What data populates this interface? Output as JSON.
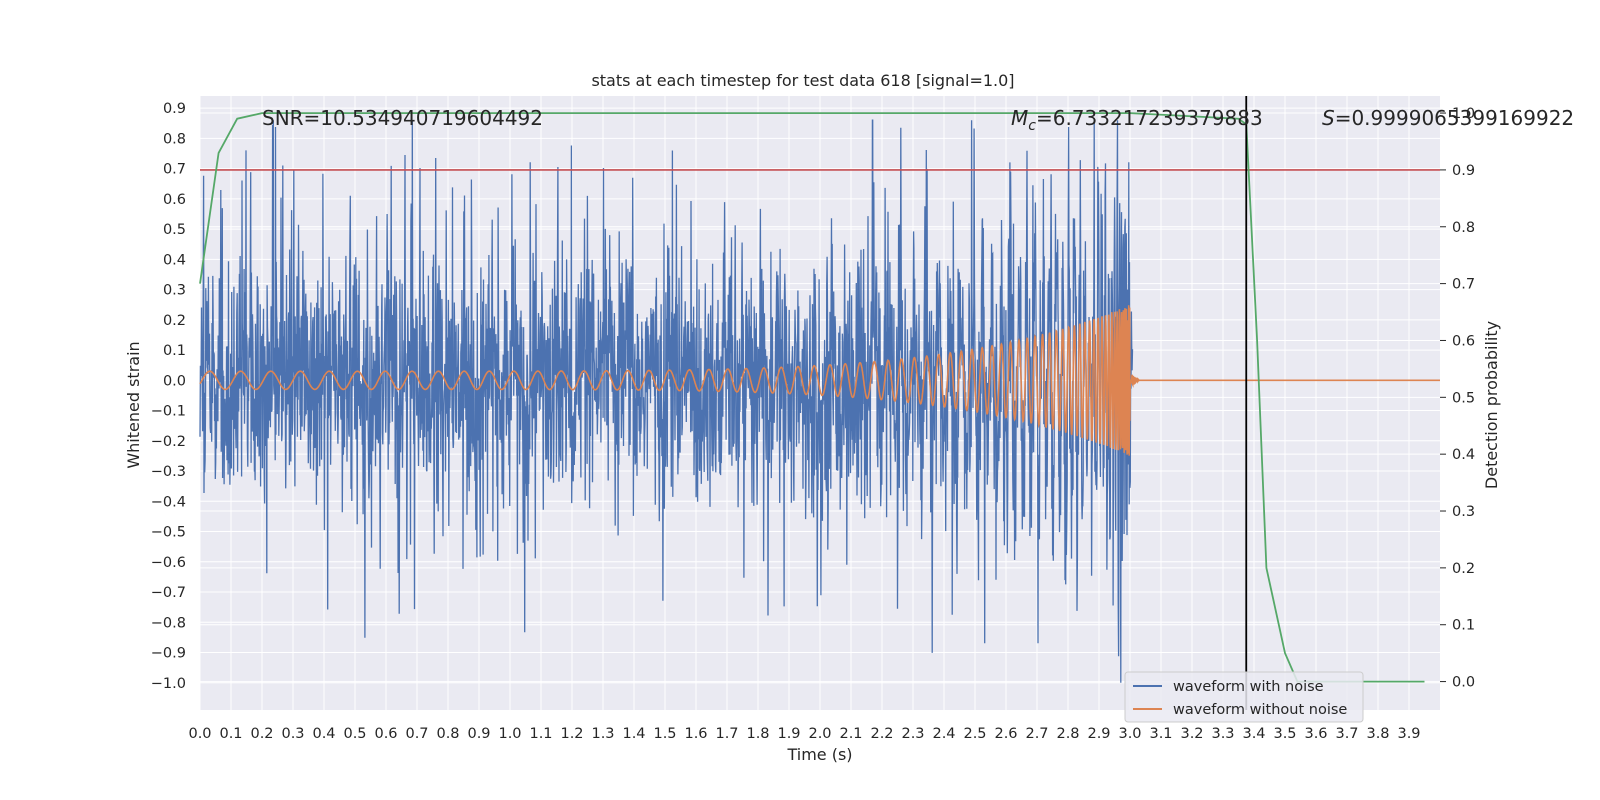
{
  "chart_data": {
    "type": "line",
    "title": "stats at each timestep for test data 618 [signal=1.0]",
    "xlabel": "Time (s)",
    "ylabel": "Whitened strain",
    "y2label": "Detection probability",
    "xlim": [
      0.0,
      4.0
    ],
    "ylim": [
      -1.09,
      0.94
    ],
    "y2lim": [
      -0.05,
      1.03
    ],
    "xticks": [
      "0.0",
      "0.1",
      "0.2",
      "0.3",
      "0.4",
      "0.5",
      "0.6",
      "0.7",
      "0.8",
      "0.9",
      "1.0",
      "1.1",
      "1.2",
      "1.3",
      "1.4",
      "1.5",
      "1.6",
      "1.7",
      "1.8",
      "1.9",
      "2.0",
      "2.1",
      "2.2",
      "2.3",
      "2.4",
      "2.5",
      "2.6",
      "2.7",
      "2.8",
      "2.9",
      "3.0",
      "3.1",
      "3.2",
      "3.3",
      "3.4",
      "3.5",
      "3.6",
      "3.7",
      "3.8",
      "3.9"
    ],
    "yticks": [
      "0.9",
      "0.8",
      "0.7",
      "0.6",
      "0.5",
      "0.4",
      "0.3",
      "0.2",
      "0.1",
      "0.0",
      "−0.1",
      "−0.2",
      "−0.3",
      "−0.4",
      "−0.5",
      "−0.6",
      "−0.7",
      "−0.8",
      "−0.9",
      "−1.0"
    ],
    "y2ticks": [
      "1.0",
      "0.9",
      "0.8",
      "0.7",
      "0.6",
      "0.5",
      "0.4",
      "0.3",
      "0.2",
      "0.1",
      "0.0"
    ],
    "annotations": {
      "snr": "SNR=10.534940719604492",
      "mc_symbol": "M",
      "mc_sub": "c",
      "mc_value": "=6.733217239379883",
      "s_symbol": "S",
      "s_value": "=0.9999065399169922"
    },
    "threshold_y2": 0.9,
    "marker_time": 3.375,
    "series": [
      {
        "name": "waveform with noise",
        "color": "#4c72b0",
        "style": "dense noise, roughly ±0.45 with spikes up to 0.85 / −1.0"
      },
      {
        "name": "waveform without noise",
        "color": "#dd8452",
        "style": "chirp: amplitude grows from 0.03 to 0.25, merger at t≈3.0 s, then ~0"
      },
      {
        "name": "detection probability",
        "color": "#55a868",
        "axis": "right",
        "x": [
          0.0,
          0.06,
          0.12,
          0.2,
          0.3,
          1.0,
          2.0,
          3.0,
          3.35,
          3.375,
          3.41,
          3.44,
          3.5,
          3.54,
          3.95
        ],
        "y": [
          0.7,
          0.93,
          0.99,
          1.0,
          1.0,
          1.0,
          1.0,
          1.0,
          0.99,
          0.98,
          0.6,
          0.2,
          0.05,
          0.0,
          0.0
        ]
      },
      {
        "name": "threshold",
        "color": "#c44e52",
        "axis": "right",
        "y": 0.9
      }
    ],
    "legend": {
      "position": "lower-right",
      "entries": [
        {
          "label": "waveform with noise",
          "color": "#4c72b0"
        },
        {
          "label": "waveform without noise",
          "color": "#dd8452"
        }
      ]
    }
  }
}
